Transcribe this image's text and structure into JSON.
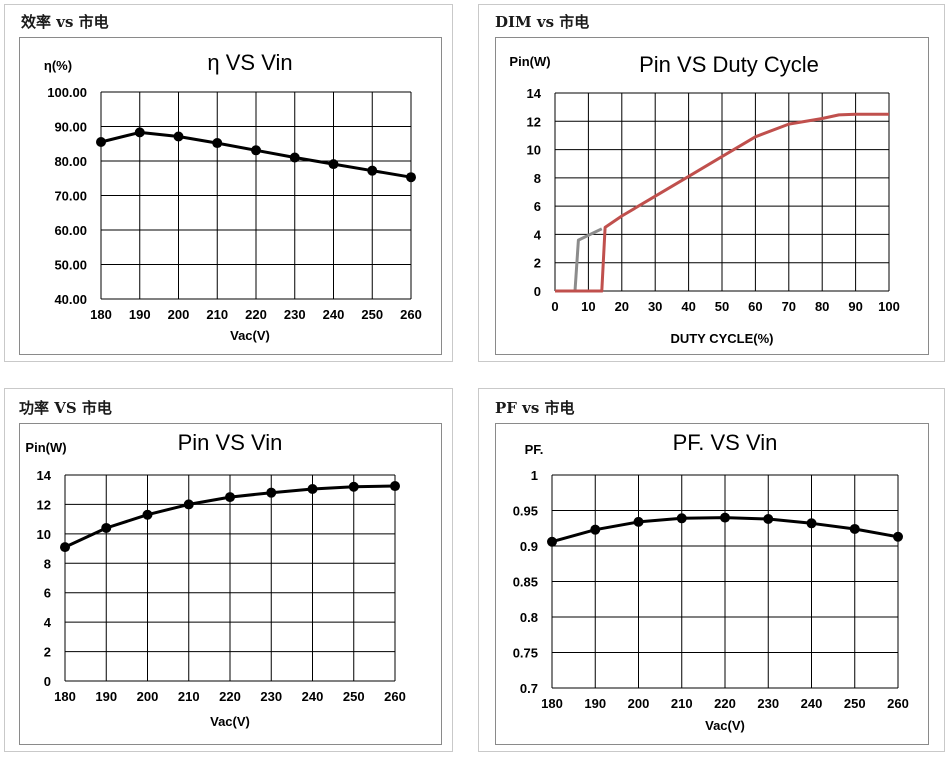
{
  "panels": [
    {
      "section_title": "效率 vs 市电",
      "chart_data": {
        "type": "line",
        "title": "η VS Vin",
        "ylabel": "η(%)",
        "xlabel": "Vac(V)",
        "x": [
          180,
          190,
          200,
          210,
          220,
          230,
          240,
          250,
          260
        ],
        "xticks": [
          "180",
          "190",
          "200",
          "210",
          "220",
          "230",
          "240",
          "250",
          "260"
        ],
        "yticks": [
          "100.00",
          "90.00",
          "80.00",
          "70.00",
          "60.00",
          "50.00",
          "40.00"
        ],
        "ylim": [
          40,
          100
        ],
        "grid": true,
        "series": [
          {
            "color": "#000000",
            "markers": true,
            "values": [
              85.5,
              88.3,
              87.1,
              85.2,
              83.1,
              81.0,
              79.1,
              77.2,
              75.3
            ]
          }
        ]
      }
    },
    {
      "section_title": "DIM vs 市电",
      "chart_data": {
        "type": "line",
        "title": "Pin VS Duty Cycle",
        "ylabel": "Pin(W)",
        "xlabel": "DUTY CYCLE(%)",
        "xticks": [
          "0",
          "10",
          "20",
          "30",
          "40",
          "50",
          "60",
          "70",
          "80",
          "90",
          "100"
        ],
        "yticks": [
          "14",
          "12",
          "10",
          "8",
          "6",
          "4",
          "2",
          "0"
        ],
        "xlim": [
          0,
          100
        ],
        "ylim": [
          0,
          14
        ],
        "grid": true,
        "series": [
          {
            "color": "#8c8c8c",
            "markers": false,
            "x": [
              0,
              6,
              7,
              14
            ],
            "values": [
              0,
              0,
              3.6,
              4.4
            ]
          },
          {
            "color": "#c0504d",
            "markers": false,
            "x": [
              0,
              14,
              15,
              20,
              30,
              40,
              50,
              60,
              70,
              80,
              85,
              90,
              100
            ],
            "values": [
              0,
              0,
              4.5,
              5.3,
              6.7,
              8.1,
              9.5,
              10.9,
              11.8,
              12.2,
              12.45,
              12.5,
              12.5
            ]
          }
        ]
      }
    },
    {
      "section_title": "功率 VS 市电",
      "chart_data": {
        "type": "line",
        "title": "Pin VS Vin",
        "ylabel": "Pin(W)",
        "xlabel": "Vac(V)",
        "x": [
          180,
          190,
          200,
          210,
          220,
          230,
          240,
          250,
          260
        ],
        "xticks": [
          "180",
          "190",
          "200",
          "210",
          "220",
          "230",
          "240",
          "250",
          "260"
        ],
        "yticks": [
          "14",
          "12",
          "10",
          "8",
          "6",
          "4",
          "2",
          "0"
        ],
        "ylim": [
          0,
          14
        ],
        "grid": true,
        "series": [
          {
            "color": "#000000",
            "markers": true,
            "values": [
              9.1,
              10.4,
              11.3,
              12.0,
              12.5,
              12.8,
              13.05,
              13.2,
              13.25
            ]
          }
        ]
      }
    },
    {
      "section_title": "PF vs 市电",
      "chart_data": {
        "type": "line",
        "title": "PF. VS Vin",
        "ylabel": "PF.",
        "xlabel": "Vac(V)",
        "x": [
          180,
          190,
          200,
          210,
          220,
          230,
          240,
          250,
          260
        ],
        "xticks": [
          "180",
          "190",
          "200",
          "210",
          "220",
          "230",
          "240",
          "250",
          "260"
        ],
        "yticks": [
          "1",
          "0.95",
          "0.9",
          "0.85",
          "0.8",
          "0.75",
          "0.7"
        ],
        "ylim": [
          0.7,
          1
        ],
        "grid": true,
        "series": [
          {
            "color": "#000000",
            "markers": true,
            "values": [
              0.906,
              0.923,
              0.934,
              0.939,
              0.94,
              0.938,
              0.932,
              0.924,
              0.913
            ]
          }
        ]
      }
    }
  ]
}
